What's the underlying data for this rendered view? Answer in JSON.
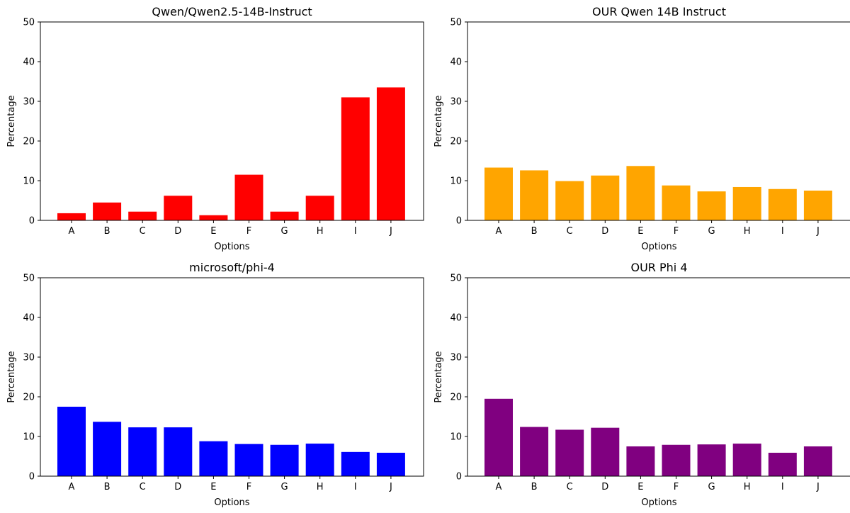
{
  "chart_data": [
    {
      "type": "bar",
      "title": "Qwen/Qwen2.5-14B-Instruct",
      "xlabel": "Options",
      "ylabel": "Percentage",
      "categories": [
        "A",
        "B",
        "C",
        "D",
        "E",
        "F",
        "G",
        "H",
        "I",
        "J"
      ],
      "values": [
        1.8,
        4.5,
        2.2,
        6.2,
        1.3,
        11.5,
        2.2,
        6.2,
        31.0,
        33.5
      ],
      "ylim": [
        0,
        50
      ],
      "yticks": [
        "0",
        "10",
        "20",
        "30",
        "40",
        "50"
      ],
      "color": "#ff0000",
      "grid": false
    },
    {
      "type": "bar",
      "title": "OUR Qwen 14B Instruct",
      "xlabel": "Options",
      "ylabel": "Percentage",
      "categories": [
        "A",
        "B",
        "C",
        "D",
        "E",
        "F",
        "G",
        "H",
        "I",
        "J"
      ],
      "values": [
        13.3,
        12.6,
        9.9,
        11.3,
        13.7,
        8.8,
        7.3,
        8.4,
        7.9,
        7.5
      ],
      "ylim": [
        0,
        50
      ],
      "yticks": [
        "0",
        "10",
        "20",
        "30",
        "40",
        "50"
      ],
      "color": "#ffa500",
      "grid": false
    },
    {
      "type": "bar",
      "title": "microsoft/phi-4",
      "xlabel": "Options",
      "ylabel": "Percentage",
      "categories": [
        "A",
        "B",
        "C",
        "D",
        "E",
        "F",
        "G",
        "H",
        "I",
        "J"
      ],
      "values": [
        17.5,
        13.7,
        12.3,
        12.3,
        8.8,
        8.1,
        7.9,
        8.2,
        6.1,
        5.9
      ],
      "ylim": [
        0,
        50
      ],
      "yticks": [
        "0",
        "10",
        "20",
        "30",
        "40",
        "50"
      ],
      "color": "#0000ff",
      "grid": false
    },
    {
      "type": "bar",
      "title": "OUR Phi 4",
      "xlabel": "Options",
      "ylabel": "Percentage",
      "categories": [
        "A",
        "B",
        "C",
        "D",
        "E",
        "F",
        "G",
        "H",
        "I",
        "J"
      ],
      "values": [
        19.5,
        12.4,
        11.7,
        12.2,
        7.5,
        7.9,
        8.0,
        8.2,
        5.9,
        7.5
      ],
      "ylim": [
        0,
        50
      ],
      "yticks": [
        "0",
        "10",
        "20",
        "30",
        "40",
        "50"
      ],
      "color": "#800080",
      "grid": false
    }
  ]
}
